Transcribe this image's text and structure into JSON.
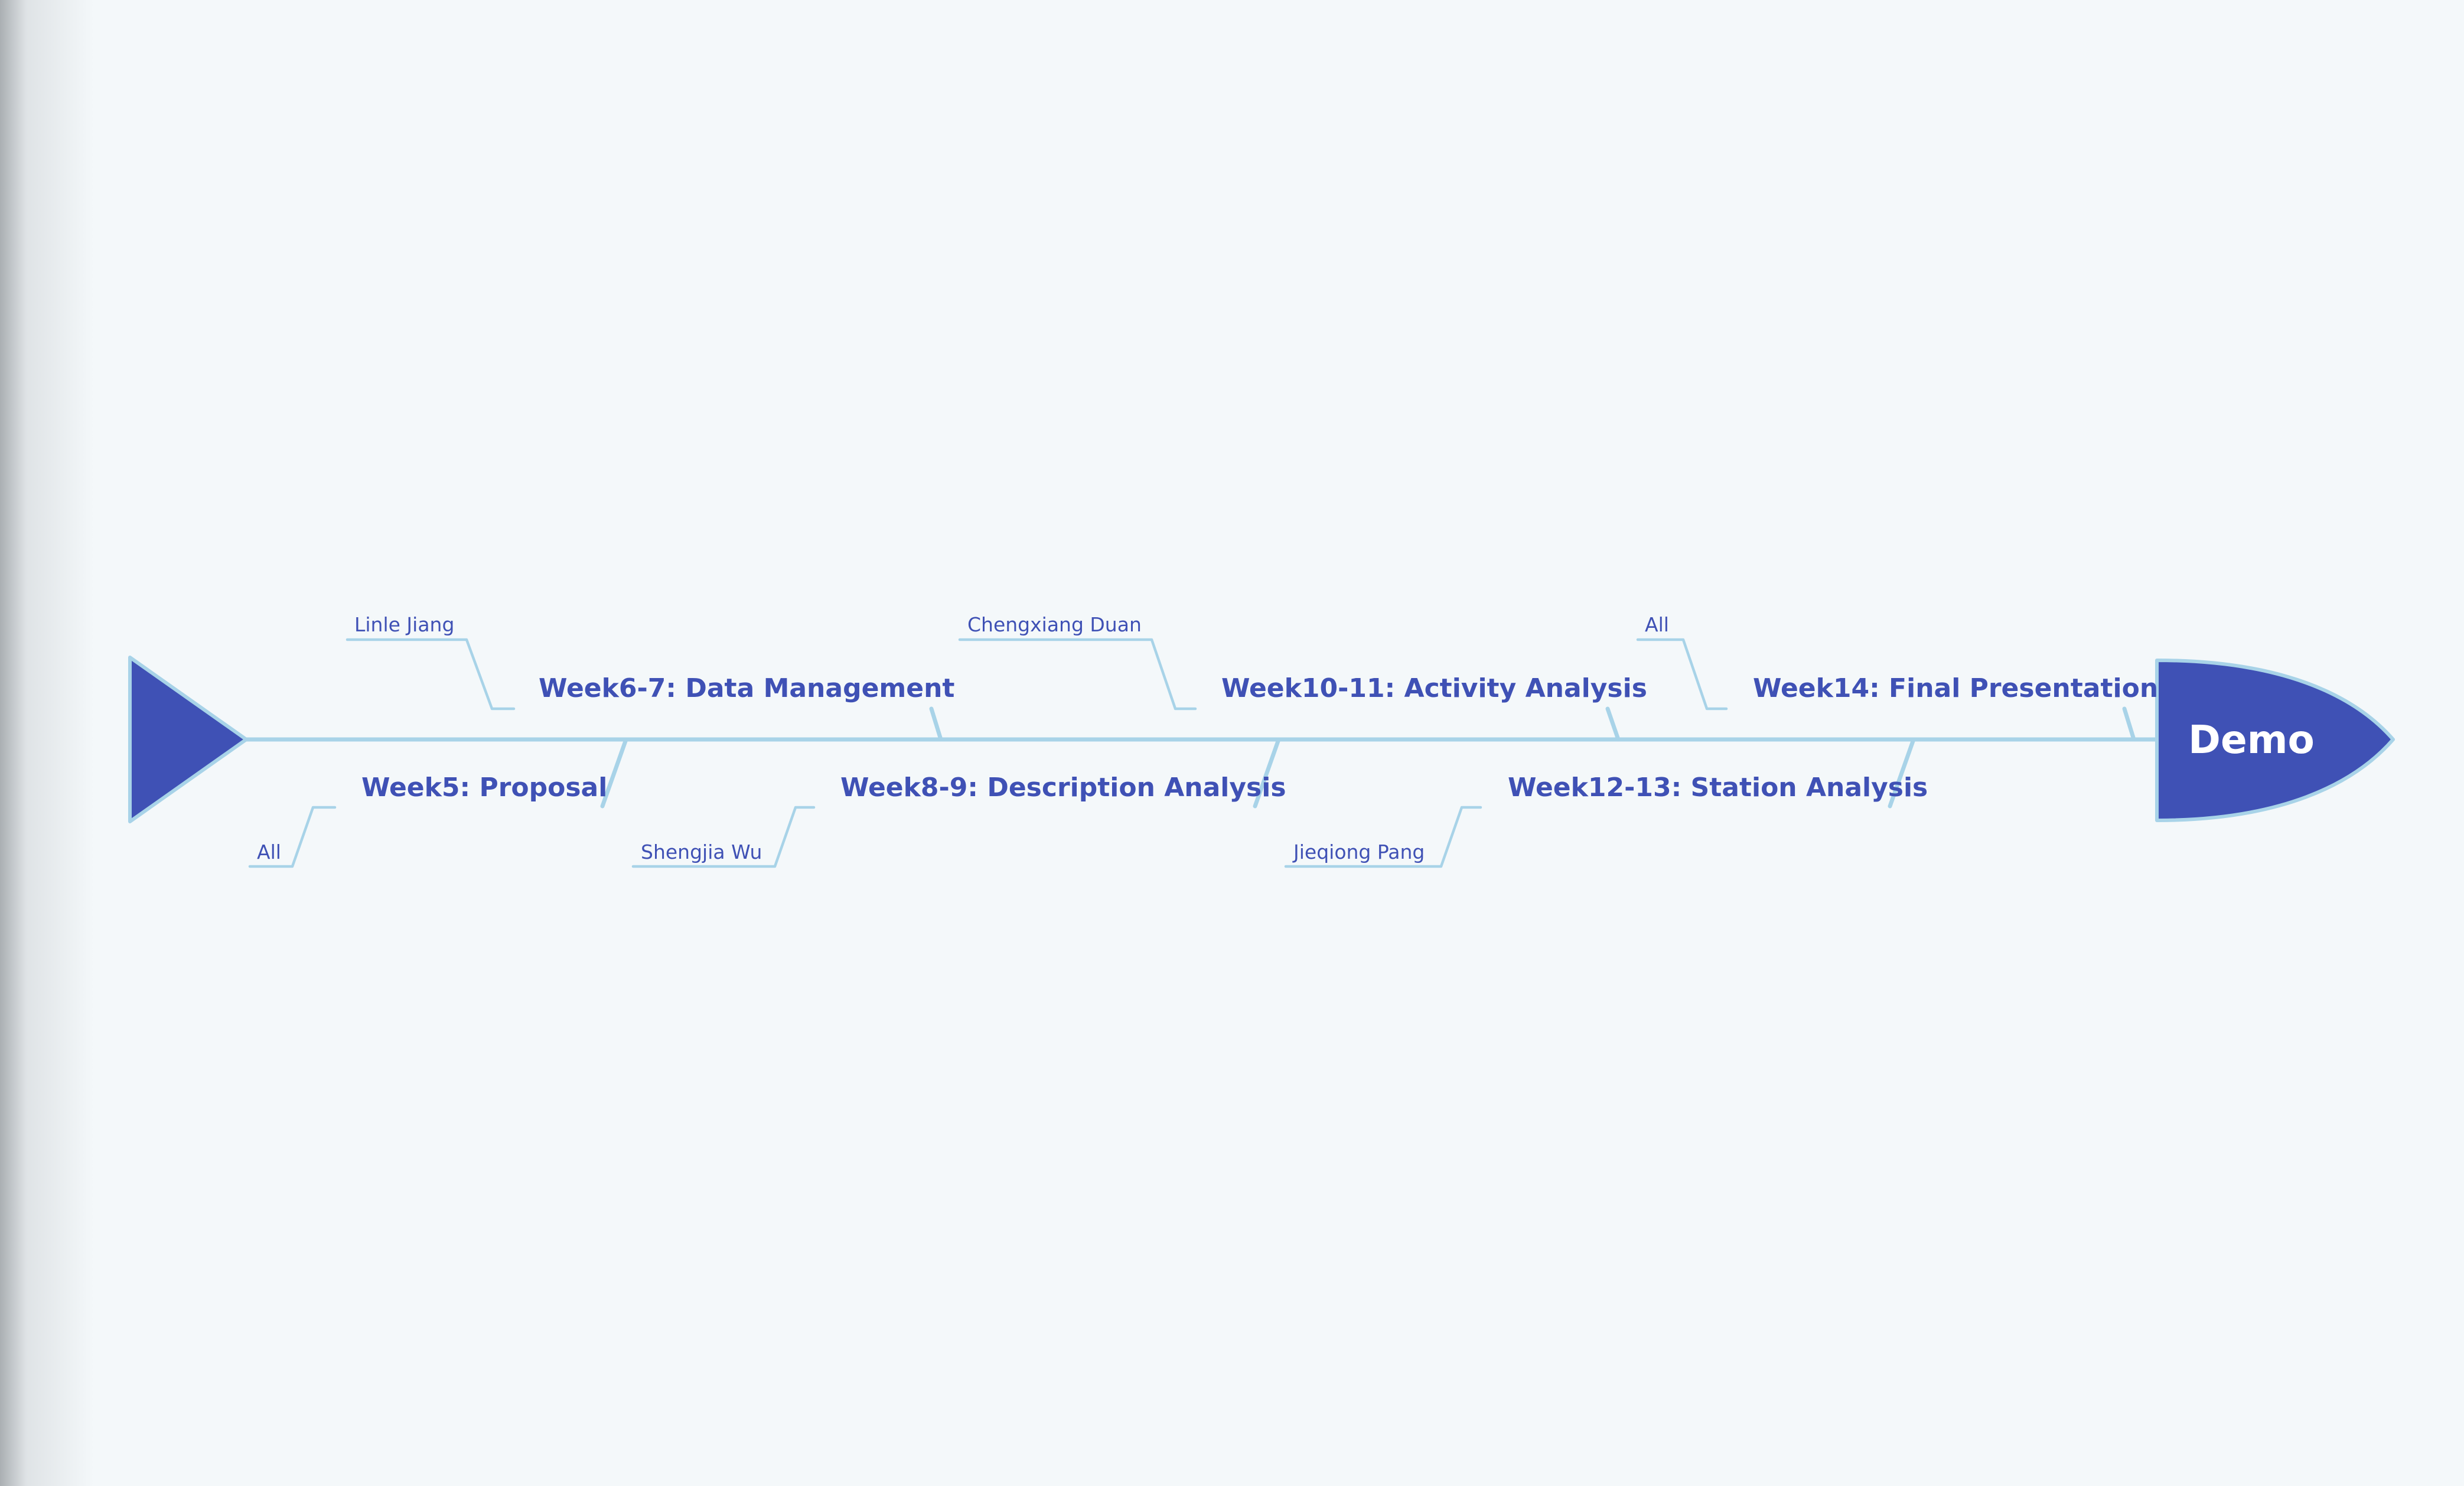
{
  "diagram": {
    "head_label": "Demo",
    "colors": {
      "primary": "#3f51b5",
      "bone": "#a8d3e8",
      "background": "#f4f8fa"
    },
    "top_branches": [
      {
        "topic": "Week6-7: Data Management",
        "person": "Linle Jiang"
      },
      {
        "topic": "Week10-11: Activity Analysis",
        "person": "Chengxiang Duan"
      },
      {
        "topic": "Week14: Final Presentation",
        "person": "All"
      }
    ],
    "bottom_branches": [
      {
        "topic": "Week5: Proposal",
        "person": "All"
      },
      {
        "topic": "Week8-9: Description Analysis",
        "person": "Shengjia Wu"
      },
      {
        "topic": "Week12-13: Station Analysis",
        "person": "Jieqiong Pang"
      }
    ]
  }
}
